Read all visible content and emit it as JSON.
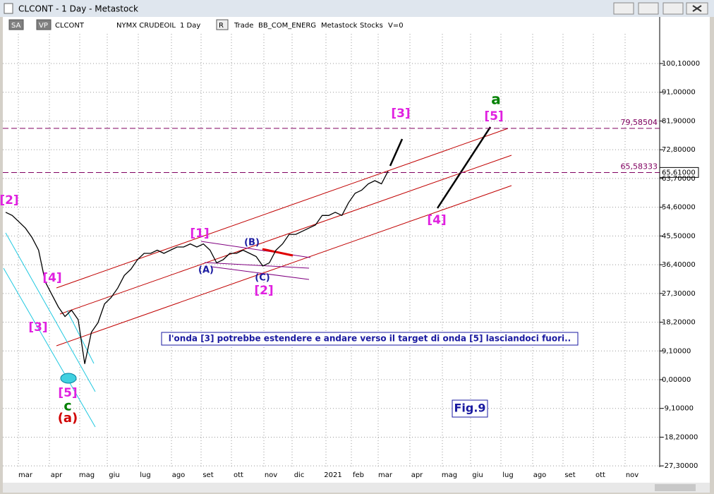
{
  "window": {
    "title": "CLCONT - 1 Day - Metastock"
  },
  "toolbar": {
    "items": [
      "SA",
      "VP",
      "CLCONT",
      "NYMX CRUDEOIL",
      "1 Day",
      "R",
      "Trade",
      "BB_COM_ENERG",
      "Metastock",
      "Stocks",
      "V=0"
    ]
  },
  "axis": {
    "yticks": [
      {
        "value": 100.1,
        "label": "100,10000"
      },
      {
        "value": 91,
        "label": "91,00000"
      },
      {
        "value": 81.9,
        "label": "81,90000"
      },
      {
        "value": 72.8,
        "label": "72,80000"
      },
      {
        "value": 63.7,
        "label": "63,70000"
      },
      {
        "value": 54.6,
        "label": "54,60000"
      },
      {
        "value": 45.5,
        "label": "45,50000"
      },
      {
        "value": 36.4,
        "label": "36,40000"
      },
      {
        "value": 27.3,
        "label": "27,30000"
      },
      {
        "value": 18.2,
        "label": "18,20000"
      },
      {
        "value": 9.1,
        "label": "9,10000"
      },
      {
        "value": 0,
        "label": "0,00000"
      },
      {
        "value": -9.1,
        "label": "-9,10000"
      },
      {
        "value": -18.2,
        "label": "-18,20000"
      },
      {
        "value": -27.3,
        "label": "-27,30000"
      }
    ],
    "months": [
      "mar",
      "apr",
      "mag",
      "giu",
      "lug",
      "ago",
      "set",
      "ott",
      "nov",
      "dic",
      "2021",
      "feb",
      "mar",
      "apr",
      "mag",
      "giu",
      "lug",
      "ago",
      "set",
      "ott",
      "nov"
    ]
  },
  "price": {
    "values": [
      53,
      52,
      50,
      48,
      45,
      41,
      31,
      27,
      23,
      20,
      22,
      19,
      5,
      15,
      18,
      24,
      26,
      29,
      33,
      35,
      38,
      40,
      40,
      41,
      40,
      41,
      42,
      42,
      43,
      42,
      43,
      41,
      37,
      38,
      40,
      40,
      41,
      40,
      39,
      36,
      37,
      41,
      43,
      46,
      46,
      47,
      48,
      49,
      52,
      52,
      53,
      52,
      56,
      59,
      60,
      62,
      63,
      62,
      66
    ],
    "last": {
      "value": 65.61,
      "label": "65,61000"
    }
  },
  "levels": [
    {
      "value": 79.58504,
      "label": "79,58504"
    },
    {
      "value": 65.58333,
      "label": "65,58333"
    }
  ],
  "annotations": [
    "[2]",
    "[4]",
    "[3]",
    "[5]",
    "c",
    "(a)",
    "[1]",
    "(A)",
    "(B)",
    "(C)",
    "[2]",
    "[3]",
    "[4]",
    "a",
    "[5]"
  ],
  "note": "l'onda [3] potrebbe estendere e andare verso il target di onda [5] lasciandoci fuori..",
  "figure": "Fig.9"
}
